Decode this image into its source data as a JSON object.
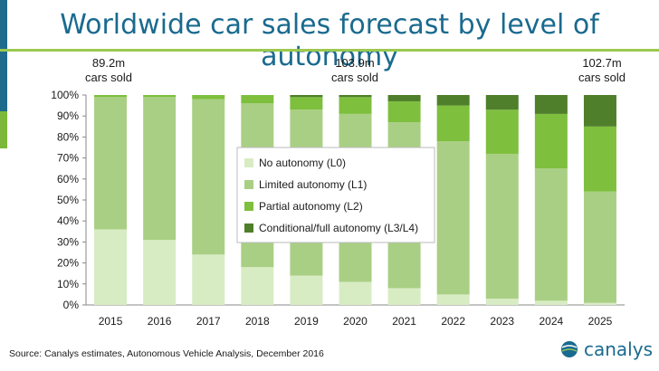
{
  "header": {
    "title": "Worldwide car sales forecast by level of autonomy"
  },
  "annotations": [
    {
      "value": "89.2m",
      "label": "cars sold",
      "year": "2015"
    },
    {
      "value": "103.9m",
      "label": "cars sold",
      "year": "2020"
    },
    {
      "value": "102.7m",
      "label": "cars sold",
      "year": "2025"
    }
  ],
  "chart_data": {
    "type": "bar",
    "stacked": true,
    "percent": true,
    "categories": [
      "2015",
      "2016",
      "2017",
      "2018",
      "2019",
      "2020",
      "2021",
      "2022",
      "2023",
      "2024",
      "2025"
    ],
    "series": [
      {
        "name": "No autonomy (L0)",
        "color": "#d8ecc4",
        "values": [
          36,
          31,
          24,
          18,
          14,
          11,
          8,
          5,
          3,
          2,
          1
        ]
      },
      {
        "name": "Limited autonomy (L1)",
        "color": "#a9cf84",
        "values": [
          63,
          68,
          74,
          78,
          79,
          80,
          79,
          73,
          69,
          63,
          53
        ]
      },
      {
        "name": "Partial autonomy (L2)",
        "color": "#7ebf3e",
        "values": [
          1,
          1,
          2,
          4,
          6,
          8,
          10,
          17,
          21,
          26,
          31
        ]
      },
      {
        "name": "Conditional/full autonomy (L3/L4)",
        "color": "#4f7f2a",
        "values": [
          0,
          0,
          0,
          0,
          1,
          1,
          3,
          5,
          7,
          9,
          15
        ]
      }
    ],
    "ylim": [
      0,
      100
    ],
    "yticks": [
      "0%",
      "10%",
      "20%",
      "30%",
      "40%",
      "50%",
      "60%",
      "70%",
      "80%",
      "90%",
      "100%"
    ],
    "legend": "center"
  },
  "footer": {
    "source": "Source: Canalys estimates, Autonomous Vehicle Analysis, December 2016",
    "logo_text": "canalys"
  }
}
